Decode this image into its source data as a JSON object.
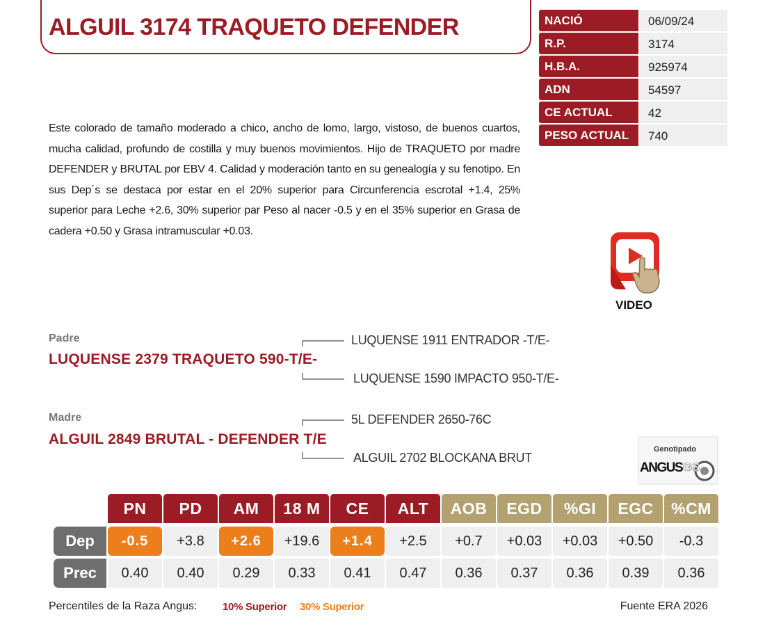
{
  "header": {
    "title": "ALGUIL 3174 TRAQUETO DEFENDER"
  },
  "info": [
    {
      "label": "NACIÓ",
      "value": "06/09/24"
    },
    {
      "label": "R.P.",
      "value": "3174"
    },
    {
      "label": "H.B.A.",
      "value": "925974"
    },
    {
      "label": "ADN",
      "value": "54597"
    },
    {
      "label": "CE ACTUAL",
      "value": "42"
    },
    {
      "label": "PESO ACTUAL",
      "value": "740"
    }
  ],
  "description": "Este colorado de tamaño moderado a chico, ancho de lomo, largo, vistoso, de buenos cuartos, mucha calidad, profundo de costilla y muy buenos movimientos. Hijo de TRAQUETO por madre DEFENDER y BRUTAL por EBV 4. Calidad y moderación tanto en su genealogía y su fenotipo. En sus Dep´s se destaca por estar en el 20% superior para Circunferencia escrotal +1.4, 25% superior para Leche +2.6, 30% superior par Peso al nacer -0.5 y en el 35% superior en Grasa de cadera +0.50 y Grasa intramuscular +0.03.",
  "video": {
    "label": "VIDEO"
  },
  "pedigree": {
    "sire": {
      "label": "Padre",
      "name": "LUQUENSE 2379 TRAQUETO 590-T/E-",
      "sire": "LUQUENSE 1911 ENTRADOR -T/E-",
      "dam": "LUQUENSE 1590 IMPACTO 950-T/E-"
    },
    "dam": {
      "label": "Madre",
      "name": "ALGUIL 2849 BRUTAL - DEFENDER T/E",
      "sire": "5L DEFENDER 2650-76C",
      "dam": "ALGUIL 2702 BLOCKANA BRUT"
    }
  },
  "badge": {
    "top": "Genotipado",
    "brand": "ANGUS",
    "suffix": "GS"
  },
  "epd": {
    "row_labels": [
      "Dep",
      "Prec"
    ],
    "columns": [
      {
        "name": "PN",
        "color": "#9b1c24",
        "dep": "-0.5",
        "prec": "0.40",
        "highlight": "#ec7f1c"
      },
      {
        "name": "PD",
        "color": "#9b1c24",
        "dep": "+3.8",
        "prec": "0.40",
        "highlight": null
      },
      {
        "name": "AM",
        "color": "#9b1c24",
        "dep": "+2.6",
        "prec": "0.29",
        "highlight": "#ec7f1c"
      },
      {
        "name": "18 M",
        "color": "#9b1c24",
        "dep": "+19.6",
        "prec": "0.33",
        "highlight": null
      },
      {
        "name": "CE",
        "color": "#9b1c24",
        "dep": "+1.4",
        "prec": "0.41",
        "highlight": "#ec7f1c"
      },
      {
        "name": "ALT",
        "color": "#9b1c24",
        "dep": "+2.5",
        "prec": "0.47",
        "highlight": null
      },
      {
        "name": "AOB",
        "color": "#b3a170",
        "dep": "+0.7",
        "prec": "0.36",
        "highlight": null
      },
      {
        "name": "EGD",
        "color": "#b3a170",
        "dep": "+0.03",
        "prec": "0.37",
        "highlight": null
      },
      {
        "name": "%GI",
        "color": "#b3a170",
        "dep": "+0.03",
        "prec": "0.36",
        "highlight": null
      },
      {
        "name": "EGC",
        "color": "#b3a170",
        "dep": "+0.50",
        "prec": "0.39",
        "highlight": null
      },
      {
        "name": "%CM",
        "color": "#b3a170",
        "dep": "-0.3",
        "prec": "0.36",
        "highlight": null
      }
    ]
  },
  "footer": {
    "legend_title": "Percentiles de la Raza Angus:",
    "legend": [
      {
        "label": "10% Superior",
        "color": "#9b1c24"
      },
      {
        "label": "30% Superior",
        "color": "#ec7f1c"
      }
    ],
    "source": "Fuente ERA 2026"
  }
}
